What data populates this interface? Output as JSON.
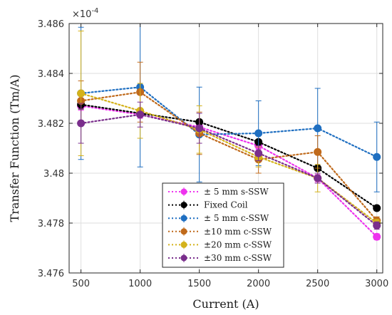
{
  "chart_data": {
    "type": "line",
    "xlabel": "Current (A)",
    "ylabel": "Transfer Function (Tm/A)",
    "y_exponent_base": "×10",
    "y_exponent_power": "-4",
    "xlim": [
      400,
      3050
    ],
    "ylim": [
      3.476,
      3.486
    ],
    "x_ticks": [
      500,
      1000,
      1500,
      2000,
      2500,
      3000
    ],
    "y_ticks": [
      3.476,
      3.478,
      3.48,
      3.482,
      3.484,
      3.486
    ],
    "y_tick_labels": [
      "3.476",
      "3.478",
      "3.48",
      "3.482",
      "3.484",
      "3.486"
    ],
    "grid": true,
    "legend_position": "lower-center",
    "x": [
      500,
      1000,
      1500,
      2000,
      2500,
      3000
    ],
    "series": [
      {
        "name": "± 5 mm s-SSW",
        "color": "#ee33ee",
        "values": [
          3.4827,
          3.48235,
          3.48185,
          3.4811,
          3.4798,
          3.47745
        ],
        "errors": [
          0.00018,
          0.00015,
          0.00015,
          0.00015,
          0.00015,
          0.00012
        ]
      },
      {
        "name": "Fixed Coil",
        "color": "#000000",
        "values": [
          3.48275,
          3.4824,
          3.48205,
          3.48125,
          3.4802,
          3.4786
        ],
        "errors": [
          0.00018,
          0.00015,
          0.0001,
          0.0001,
          0.0001,
          0.0001
        ]
      },
      {
        "name": "± 5 mm c-SSW",
        "color": "#1f6fc1",
        "values": [
          3.4832,
          3.48345,
          3.48155,
          3.4816,
          3.4818,
          3.48065
        ],
        "errors": [
          0.00265,
          0.0032,
          0.0019,
          0.0013,
          0.0016,
          0.0014
        ]
      },
      {
        "name": "±10 mm c-SSW",
        "color": "#c06a1b",
        "values": [
          3.4829,
          3.48325,
          3.4816,
          3.48055,
          3.48085,
          3.4781
        ],
        "errors": [
          0.0008,
          0.0012,
          0.00085,
          0.00055,
          0.00065,
          0.00015
        ]
      },
      {
        "name": "±20 mm c-SSW",
        "color": "#d4b21a",
        "values": [
          3.4832,
          3.4825,
          3.48175,
          3.48065,
          3.4798,
          3.478
        ],
        "errors": [
          0.0025,
          0.0011,
          0.00095,
          0.0004,
          0.00055,
          0.00015
        ]
      },
      {
        "name": "±30 mm c-SSW",
        "color": "#7a2e8c",
        "values": [
          3.482,
          3.48235,
          3.4818,
          3.4808,
          3.4798,
          3.4779
        ],
        "errors": [
          0.0008,
          0.0005,
          0.0006,
          0.0003,
          0.0002,
          0.00015
        ]
      }
    ]
  }
}
